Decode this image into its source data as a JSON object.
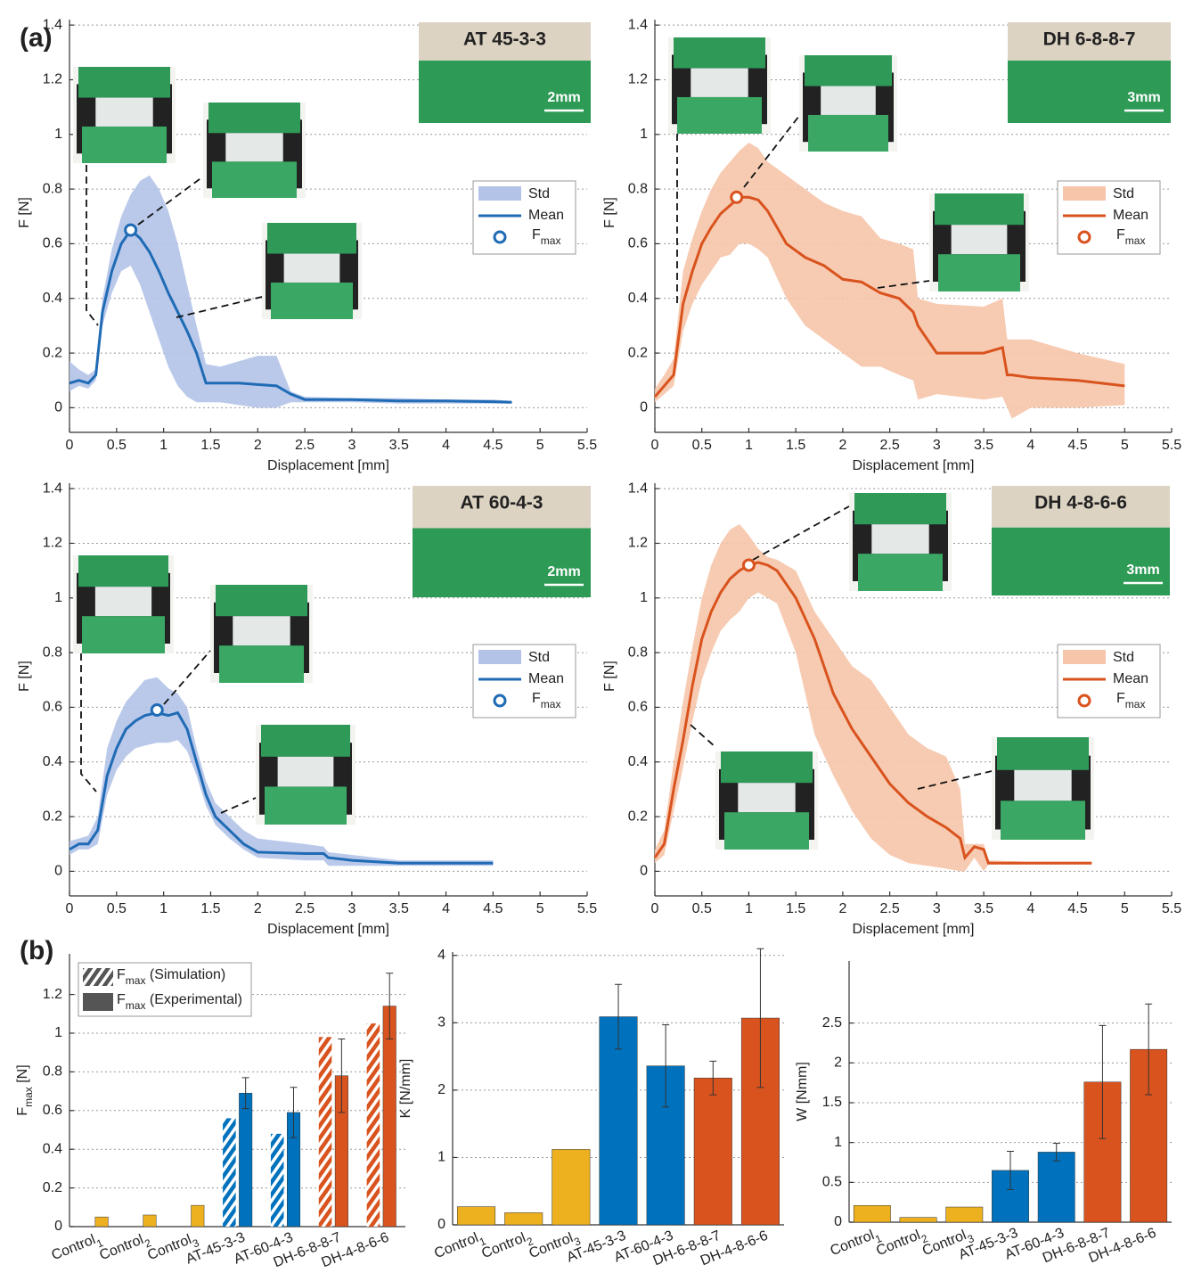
{
  "panel_labels": [
    "(a)",
    "(b)"
  ],
  "chart_data": [
    {
      "type": "line",
      "inset_title": "AT 45-3-3",
      "inset_scale": "2mm",
      "xlabel": "Displacement [mm]",
      "ylabel": "F [N]",
      "xlim": [
        0,
        5.5
      ],
      "ylim": [
        -0.09,
        1.42
      ],
      "xticks": [
        0,
        0.5,
        1,
        1.5,
        2,
        2.5,
        3,
        3.5,
        4,
        4.5,
        5,
        5.5
      ],
      "yticks": [
        0,
        0.2,
        0.4,
        0.6,
        0.8,
        1,
        1.2,
        1.4
      ],
      "grid": true,
      "legend": "right",
      "x": [
        0,
        0.1,
        0.2,
        0.28,
        0.35,
        0.45,
        0.55,
        0.65,
        0.75,
        0.85,
        0.95,
        1.05,
        1.15,
        1.25,
        1.35,
        1.45,
        1.6,
        1.8,
        2.0,
        2.2,
        2.35,
        2.5,
        3.0,
        3.5,
        4.0,
        4.5,
        4.7
      ],
      "series": [
        {
          "name": "Std",
          "color": "#b3c3e8",
          "upper": [
            0.17,
            0.14,
            0.12,
            0.14,
            0.4,
            0.58,
            0.7,
            0.78,
            0.83,
            0.85,
            0.8,
            0.72,
            0.6,
            0.45,
            0.3,
            0.16,
            0.15,
            0.17,
            0.19,
            0.19,
            0.06,
            0.04,
            0.035,
            0.035,
            0.03,
            0.03,
            0.025
          ],
          "lower": [
            0.06,
            0.08,
            0.07,
            0.1,
            0.3,
            0.42,
            0.5,
            0.52,
            0.45,
            0.35,
            0.25,
            0.15,
            0.08,
            0.04,
            0.02,
            0.02,
            0.02,
            0.01,
            0.0,
            0.0,
            0.02,
            0.02,
            0.02,
            0.015,
            0.015,
            0.015,
            0.015
          ]
        },
        {
          "name": "Mean",
          "color": "#1f6bb5",
          "values": [
            0.09,
            0.1,
            0.09,
            0.12,
            0.35,
            0.5,
            0.6,
            0.65,
            0.62,
            0.57,
            0.5,
            0.42,
            0.35,
            0.28,
            0.2,
            0.09,
            0.09,
            0.09,
            0.085,
            0.08,
            0.05,
            0.03,
            0.03,
            0.025,
            0.025,
            0.022,
            0.02
          ]
        },
        {
          "name": "F",
          "name_subscript": "max",
          "color": "#1f6bb5",
          "x": [
            0.65
          ],
          "values": [
            0.65
          ]
        }
      ]
    },
    {
      "type": "line",
      "inset_title": "DH 6-8-8-7",
      "inset_scale": "3mm",
      "xlabel": "Displacement [mm]",
      "ylabel": "F [N]",
      "xlim": [
        0,
        5.5
      ],
      "ylim": [
        -0.09,
        1.42
      ],
      "xticks": [
        0,
        0.5,
        1,
        1.5,
        2,
        2.5,
        3,
        3.5,
        4,
        4.5,
        5,
        5.5
      ],
      "yticks": [
        0,
        0.2,
        0.4,
        0.6,
        0.8,
        1,
        1.2,
        1.4
      ],
      "grid": true,
      "legend": "right",
      "x": [
        0,
        0.1,
        0.2,
        0.3,
        0.4,
        0.5,
        0.6,
        0.7,
        0.8,
        0.9,
        1.0,
        1.1,
        1.2,
        1.4,
        1.6,
        1.8,
        2.0,
        2.2,
        2.4,
        2.6,
        2.75,
        2.8,
        3.0,
        3.5,
        3.7,
        3.75,
        3.8,
        4.0,
        4.5,
        5.0
      ],
      "series": [
        {
          "name": "Std",
          "color": "#f6c5aa",
          "upper": [
            0.07,
            0.12,
            0.18,
            0.5,
            0.62,
            0.72,
            0.8,
            0.86,
            0.9,
            0.94,
            0.97,
            0.95,
            0.9,
            0.85,
            0.8,
            0.75,
            0.72,
            0.7,
            0.62,
            0.6,
            0.58,
            0.4,
            0.38,
            0.37,
            0.4,
            0.25,
            0.25,
            0.25,
            0.2,
            0.16
          ],
          "lower": [
            0.02,
            0.05,
            0.08,
            0.28,
            0.38,
            0.45,
            0.5,
            0.55,
            0.56,
            0.6,
            0.6,
            0.58,
            0.55,
            0.4,
            0.3,
            0.25,
            0.2,
            0.15,
            0.15,
            0.12,
            0.1,
            0.03,
            0.05,
            0.03,
            0.04,
            0.0,
            -0.04,
            0.0,
            0.0,
            0.01
          ]
        },
        {
          "name": "Mean",
          "color": "#d9531e",
          "values": [
            0.04,
            0.08,
            0.12,
            0.38,
            0.5,
            0.6,
            0.66,
            0.71,
            0.74,
            0.77,
            0.77,
            0.76,
            0.72,
            0.6,
            0.55,
            0.52,
            0.47,
            0.46,
            0.42,
            0.4,
            0.35,
            0.3,
            0.2,
            0.2,
            0.22,
            0.12,
            0.12,
            0.11,
            0.1,
            0.08
          ]
        },
        {
          "name": "F",
          "name_subscript": "max",
          "color": "#d9531e",
          "x": [
            0.87
          ],
          "values": [
            0.77
          ]
        }
      ]
    },
    {
      "type": "line",
      "inset_title": "AT 60-4-3",
      "inset_scale": "2mm",
      "xlabel": "Displacement [mm]",
      "ylabel": "F [N]",
      "xlim": [
        0,
        5.5
      ],
      "ylim": [
        -0.09,
        1.42
      ],
      "xticks": [
        0,
        0.5,
        1,
        1.5,
        2,
        2.5,
        3,
        3.5,
        4,
        4.5,
        5,
        5.5
      ],
      "yticks": [
        0,
        0.2,
        0.4,
        0.6,
        0.8,
        1,
        1.2,
        1.4
      ],
      "grid": true,
      "legend": "right",
      "x": [
        0,
        0.1,
        0.2,
        0.3,
        0.4,
        0.5,
        0.6,
        0.7,
        0.8,
        0.93,
        1.05,
        1.15,
        1.25,
        1.35,
        1.45,
        1.55,
        1.7,
        1.85,
        2.0,
        2.5,
        2.7,
        2.75,
        3.0,
        3.5,
        4.0,
        4.5
      ],
      "series": [
        {
          "name": "Std",
          "color": "#b3c3e8",
          "upper": [
            0.11,
            0.12,
            0.13,
            0.2,
            0.45,
            0.55,
            0.62,
            0.66,
            0.7,
            0.71,
            0.67,
            0.65,
            0.6,
            0.45,
            0.33,
            0.25,
            0.2,
            0.15,
            0.12,
            0.1,
            0.09,
            0.07,
            0.06,
            0.04,
            0.04,
            0.04
          ],
          "lower": [
            0.06,
            0.08,
            0.08,
            0.1,
            0.28,
            0.37,
            0.42,
            0.45,
            0.46,
            0.47,
            0.47,
            0.48,
            0.44,
            0.35,
            0.24,
            0.17,
            0.12,
            0.08,
            0.05,
            0.04,
            0.04,
            0.02,
            0.02,
            0.02,
            0.02,
            0.02
          ]
        },
        {
          "name": "Mean",
          "color": "#1f6bb5",
          "values": [
            0.08,
            0.1,
            0.1,
            0.15,
            0.35,
            0.45,
            0.52,
            0.55,
            0.57,
            0.58,
            0.57,
            0.58,
            0.52,
            0.4,
            0.28,
            0.2,
            0.15,
            0.1,
            0.07,
            0.065,
            0.065,
            0.05,
            0.04,
            0.03,
            0.03,
            0.03
          ]
        },
        {
          "name": "F",
          "name_subscript": "max",
          "color": "#1f6bb5",
          "x": [
            0.93
          ],
          "values": [
            0.59
          ]
        }
      ]
    },
    {
      "type": "line",
      "inset_title": "DH 4-8-6-6",
      "inset_scale": "3mm",
      "xlabel": "Displacement [mm]",
      "ylabel": "F [N]",
      "xlim": [
        0,
        5.5
      ],
      "ylim": [
        -0.09,
        1.42
      ],
      "xticks": [
        0,
        0.5,
        1,
        1.5,
        2,
        2.5,
        3,
        3.5,
        4,
        4.5,
        5,
        5.5
      ],
      "yticks": [
        0,
        0.2,
        0.4,
        0.6,
        0.8,
        1,
        1.2,
        1.4
      ],
      "grid": true,
      "legend": "right",
      "x": [
        0,
        0.1,
        0.2,
        0.3,
        0.4,
        0.5,
        0.6,
        0.7,
        0.8,
        0.9,
        1.0,
        1.1,
        1.2,
        1.3,
        1.5,
        1.7,
        1.9,
        2.1,
        2.3,
        2.5,
        2.7,
        2.9,
        3.1,
        3.25,
        3.3,
        3.4,
        3.5,
        3.55,
        4.0,
        4.65
      ],
      "series": [
        {
          "name": "Std",
          "color": "#f6c5aa",
          "upper": [
            0.08,
            0.15,
            0.4,
            0.62,
            0.82,
            1.0,
            1.12,
            1.2,
            1.25,
            1.27,
            1.23,
            1.18,
            1.15,
            1.14,
            1.1,
            0.95,
            0.85,
            0.75,
            0.7,
            0.6,
            0.5,
            0.45,
            0.42,
            0.3,
            0.1,
            0.1,
            0.1,
            0.04,
            0.035,
            0.035
          ],
          "lower": [
            0.03,
            0.06,
            0.22,
            0.38,
            0.55,
            0.7,
            0.8,
            0.88,
            0.92,
            0.95,
            1.0,
            1.02,
            1.0,
            0.98,
            0.8,
            0.5,
            0.35,
            0.22,
            0.12,
            0.06,
            0.03,
            0.02,
            0.01,
            0.0,
            0.0,
            0.05,
            0.0,
            0.025,
            0.025,
            0.025
          ]
        },
        {
          "name": "Mean",
          "color": "#d9531e",
          "values": [
            0.05,
            0.1,
            0.3,
            0.48,
            0.68,
            0.85,
            0.95,
            1.02,
            1.07,
            1.1,
            1.12,
            1.13,
            1.12,
            1.1,
            1.0,
            0.85,
            0.65,
            0.52,
            0.42,
            0.32,
            0.25,
            0.2,
            0.16,
            0.12,
            0.05,
            0.09,
            0.08,
            0.03,
            0.03,
            0.03
          ]
        },
        {
          "name": "F",
          "name_subscript": "max",
          "color": "#d9531e",
          "x": [
            1.0
          ],
          "values": [
            1.12
          ]
        }
      ]
    },
    {
      "type": "bar",
      "ylabel": "F",
      "ylabel_subscript": "max",
      "ylabel_suffix": " [N]",
      "categories": [
        "Control",
        "Control",
        "Control",
        "AT-45-3-3",
        "AT-60-4-3",
        "DH-6-8-8-7",
        "DH-4-8-6-6"
      ],
      "category_subscripts": [
        "1",
        "2",
        "3",
        null,
        null,
        null,
        null
      ],
      "ylim": [
        0,
        1.41
      ],
      "yticks": [
        0,
        0.2,
        0.4,
        0.6,
        0.8,
        1,
        1.2
      ],
      "grid": true,
      "legend": "upper left",
      "series": [
        {
          "name": "F",
          "name_subscript": "max",
          "name_suffix": " (Simulation)",
          "hatch": true,
          "legend_color": "#555555",
          "colors": [
            "#edb120",
            "#edb120",
            "#edb120",
            "#0072bd",
            "#0072bd",
            "#d9531e",
            "#d9531e"
          ],
          "values": [
            null,
            null,
            null,
            0.56,
            0.48,
            0.98,
            1.05
          ]
        },
        {
          "name": "F",
          "name_subscript": "max",
          "name_suffix": " (Experimental)",
          "legend_color": "#555555",
          "colors": [
            "#edb120",
            "#edb120",
            "#edb120",
            "#0072bd",
            "#0072bd",
            "#d9531e",
            "#d9531e"
          ],
          "values": [
            0.05,
            0.06,
            0.11,
            0.69,
            0.59,
            0.78,
            1.14
          ],
          "errors": [
            null,
            null,
            null,
            0.08,
            0.13,
            0.19,
            0.17
          ]
        }
      ]
    },
    {
      "type": "bar",
      "ylabel": "K [N/mm]",
      "categories": [
        "Control",
        "Control",
        "Control",
        "AT-45-3-3",
        "AT-60-4-3",
        "DH-6-8-8-7",
        "DH-4-8-6-6"
      ],
      "category_subscripts": [
        "1",
        "2",
        "3",
        null,
        null,
        null,
        null
      ],
      "ylim": [
        0,
        4.05
      ],
      "yticks": [
        0,
        1,
        2,
        3,
        4
      ],
      "grid": true,
      "series": [
        {
          "colors": [
            "#edb120",
            "#edb120",
            "#edb120",
            "#0072bd",
            "#0072bd",
            "#d9531e",
            "#d9531e"
          ],
          "values": [
            0.27,
            0.18,
            1.12,
            3.09,
            2.36,
            2.18,
            3.07
          ],
          "errors": [
            null,
            null,
            null,
            0.48,
            0.61,
            0.25,
            1.03
          ]
        }
      ]
    },
    {
      "type": "bar",
      "ylabel": "W [Nmm]",
      "categories": [
        "Control",
        "Control",
        "Control",
        "AT-45-3-3",
        "AT-60-4-3",
        "DH-6-8-8-7",
        "DH-4-8-6-6"
      ],
      "category_subscripts": [
        "1",
        "2",
        "3",
        null,
        null,
        null,
        null
      ],
      "ylim": [
        0,
        3.28
      ],
      "yticks": [
        0,
        0.5,
        1,
        1.5,
        2,
        2.5
      ],
      "grid": true,
      "series": [
        {
          "colors": [
            "#edb120",
            "#edb120",
            "#edb120",
            "#0072bd",
            "#0072bd",
            "#d9531e",
            "#d9531e"
          ],
          "values": [
            0.21,
            0.06,
            0.19,
            0.65,
            0.88,
            1.76,
            2.17
          ],
          "errors": [
            null,
            null,
            null,
            0.24,
            0.11,
            0.71,
            0.57
          ]
        }
      ]
    }
  ]
}
